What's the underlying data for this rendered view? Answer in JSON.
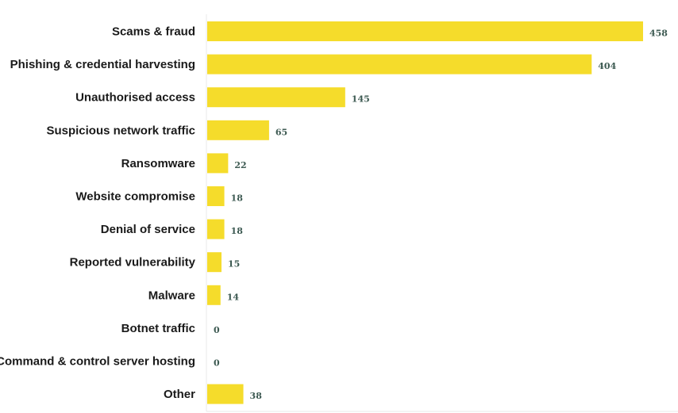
{
  "chart_data": {
    "type": "bar",
    "orientation": "horizontal",
    "categories": [
      "Scams & fraud",
      "Phishing & credential harvesting",
      "Unauthorised access",
      "Suspicious network traffic",
      "Ransomware",
      "Website compromise",
      "Denial of service",
      "Reported vulnerability",
      "Malware",
      "Botnet traffic",
      "Command & control server hosting",
      "Other"
    ],
    "values": [
      458,
      404,
      145,
      65,
      22,
      18,
      18,
      15,
      14,
      0,
      0,
      38
    ],
    "value_labels": [
      "458",
      "404",
      "145",
      "65",
      "22",
      "18",
      "18",
      "15",
      "14",
      "0",
      "0",
      "38"
    ],
    "xlim": [
      0,
      458
    ],
    "grid": false,
    "legend": "none",
    "bar_color": "#f5dc2b",
    "axis_color": "#e8e8e8",
    "value_label_color": "#3d5a52"
  }
}
